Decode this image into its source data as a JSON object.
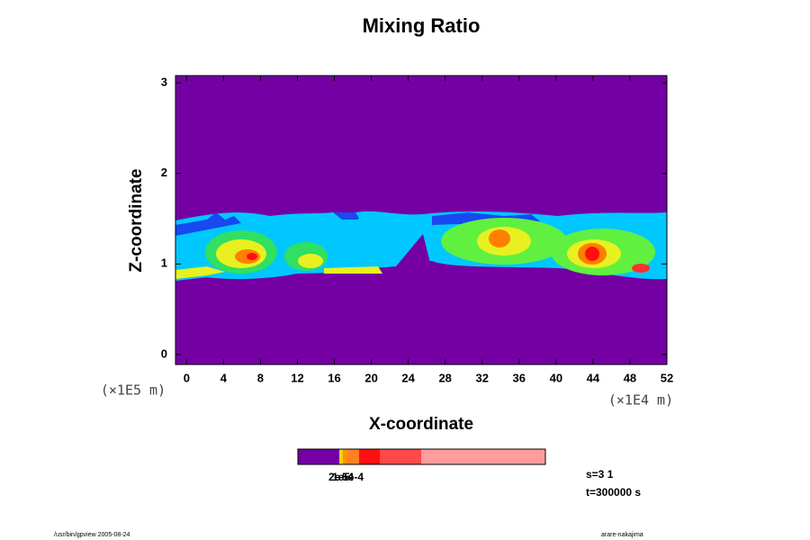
{
  "chart_data": {
    "type": "contour",
    "title": "Mixing Ratio",
    "x_label": "X-coordinate",
    "y_label": "Z-coordinate",
    "x_unit": "(×1E4 m)",
    "y_unit": "(×1E5 m)",
    "xlim": [
      -1.2,
      52
    ],
    "xticks": [
      0,
      4,
      8,
      12,
      16,
      20,
      24,
      28,
      32,
      36,
      40,
      44,
      48,
      52
    ],
    "ylim": [
      -0.11,
      3.08
    ],
    "yticks": [
      0,
      1,
      2,
      3
    ],
    "background_color": "#7400a4",
    "colorbar": {
      "colors": [
        "#7400a4",
        "#f0d000",
        "#ff9000",
        "#ff8020",
        "#ff1010",
        "#ff4848",
        "#ff9c9c"
      ],
      "labels": [
        "2e-5",
        "1e-4",
        "5e-4"
      ]
    },
    "info": [
      "s=3 1",
      "t=300000 s"
    ],
    "footer_left": "/usr/bin/gpview 2005-08-24",
    "footer_right": "arare-nakajima"
  }
}
